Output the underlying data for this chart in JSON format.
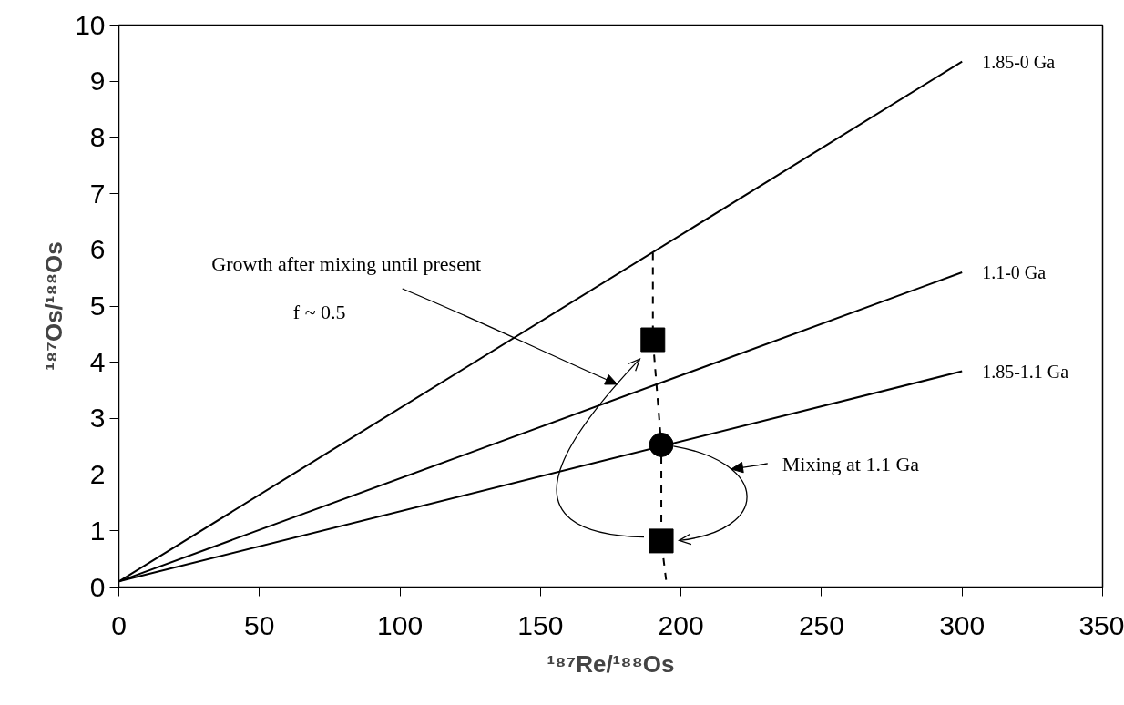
{
  "chart_data": {
    "type": "line",
    "xlabel": "¹⁸⁷Re/¹⁸⁸Os",
    "ylabel": "¹⁸⁷Os/¹⁸⁸Os",
    "xlim": [
      0,
      350
    ],
    "xticks": [
      0,
      50,
      100,
      150,
      200,
      250,
      300,
      350
    ],
    "ylim": [
      0,
      10
    ],
    "yticks": [
      0,
      1,
      2,
      3,
      4,
      5,
      6,
      7,
      8,
      9,
      10
    ],
    "series": [
      {
        "name": "1.85-0 Ga",
        "color": "#000000",
        "x": [
          0,
          300
        ],
        "values": [
          0.1,
          9.35
        ]
      },
      {
        "name": "1.1-0 Ga",
        "color": "#000000",
        "x": [
          0,
          300
        ],
        "values": [
          0.1,
          5.6
        ]
      },
      {
        "name": "1.85-1.1 Ga",
        "color": "#000000",
        "x": [
          0,
          300
        ],
        "values": [
          0.1,
          3.84
        ]
      },
      {
        "line_style": "dashed",
        "color": "#000000",
        "x": [
          190,
          190,
          193,
          193,
          195
        ],
        "values": [
          5.95,
          4.4,
          2.53,
          0.82,
          0
        ]
      },
      {
        "type": "scatter",
        "marker": "square",
        "color": "#000000",
        "x": [
          190,
          193
        ],
        "values": [
          4.4,
          0.82
        ]
      },
      {
        "type": "scatter",
        "marker": "circle",
        "color": "#000000",
        "x": [
          193
        ],
        "values": [
          2.53
        ]
      }
    ],
    "annotations": [
      "Growth after mixing until present",
      "f ~ 0.5",
      "Mixing at 1.1 Ga"
    ]
  }
}
